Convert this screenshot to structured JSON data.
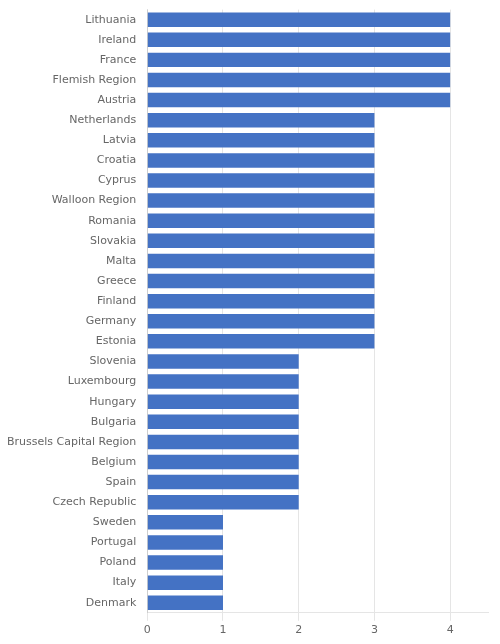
{
  "chart_data": {
    "type": "bar",
    "orientation": "horizontal",
    "categories": [
      "Denmark",
      "Italy",
      "Poland",
      "Portugal",
      "Sweden",
      "Czech Republic",
      "Spain",
      "Belgium",
      "Brussels Capital Region",
      "Bulgaria",
      "Hungary",
      "Luxembourg",
      "Slovenia",
      "Estonia",
      "Germany",
      "Finland",
      "Greece",
      "Malta",
      "Slovakia",
      "Romania",
      "Walloon Region",
      "Cyprus",
      "Croatia",
      "Latvia",
      "Netherlands",
      "Austria",
      "Flemish Region",
      "France",
      "Ireland",
      "Lithuania"
    ],
    "values": [
      1,
      1,
      1,
      1,
      1,
      2,
      2,
      2,
      2,
      2,
      2,
      2,
      2,
      3,
      3,
      3,
      3,
      3,
      3,
      3,
      3,
      3,
      3,
      3,
      3,
      4,
      4,
      4,
      4,
      4
    ],
    "color": "#4472C4",
    "xlim": [
      0,
      4.5
    ],
    "xticks": [
      0,
      1,
      2,
      3,
      4
    ],
    "grid": true
  }
}
